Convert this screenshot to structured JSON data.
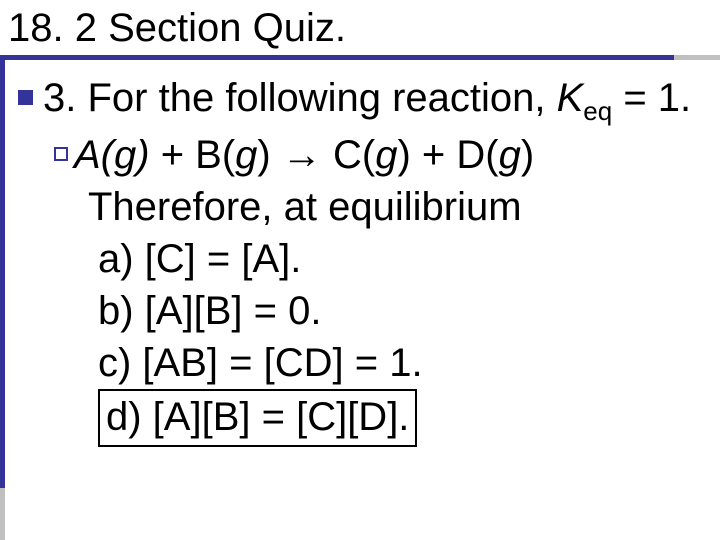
{
  "title": "18. 2 Section Quiz.",
  "question": {
    "number": "3.",
    "prefix": "For the following reaction, ",
    "kvar": "K",
    "ksub": "eq",
    "kequals": " = 1."
  },
  "equation": {
    "lhs1_ital": "A(g)",
    "plus1": " + B(",
    "g1": "g",
    "close1": ") ",
    "arrow": "→",
    "rhs": " C(",
    "g2": "g",
    "mid": ") + D(",
    "g3": "g",
    "close2": ")"
  },
  "therefore": "Therefore, at equilibrium",
  "opt_a": "a) [C] = [A].",
  "opt_b": "b) [A][B] = 0.",
  "opt_c": "c) [AB] = [CD] = 1.",
  "opt_d": "d) [A][B] = [C][D].",
  "colors": {
    "accent": "#333399",
    "grey": "#c0c0c0",
    "text": "#000000",
    "bg": "#ffffff"
  },
  "fontsize_title": 40,
  "fontsize_body": 40
}
